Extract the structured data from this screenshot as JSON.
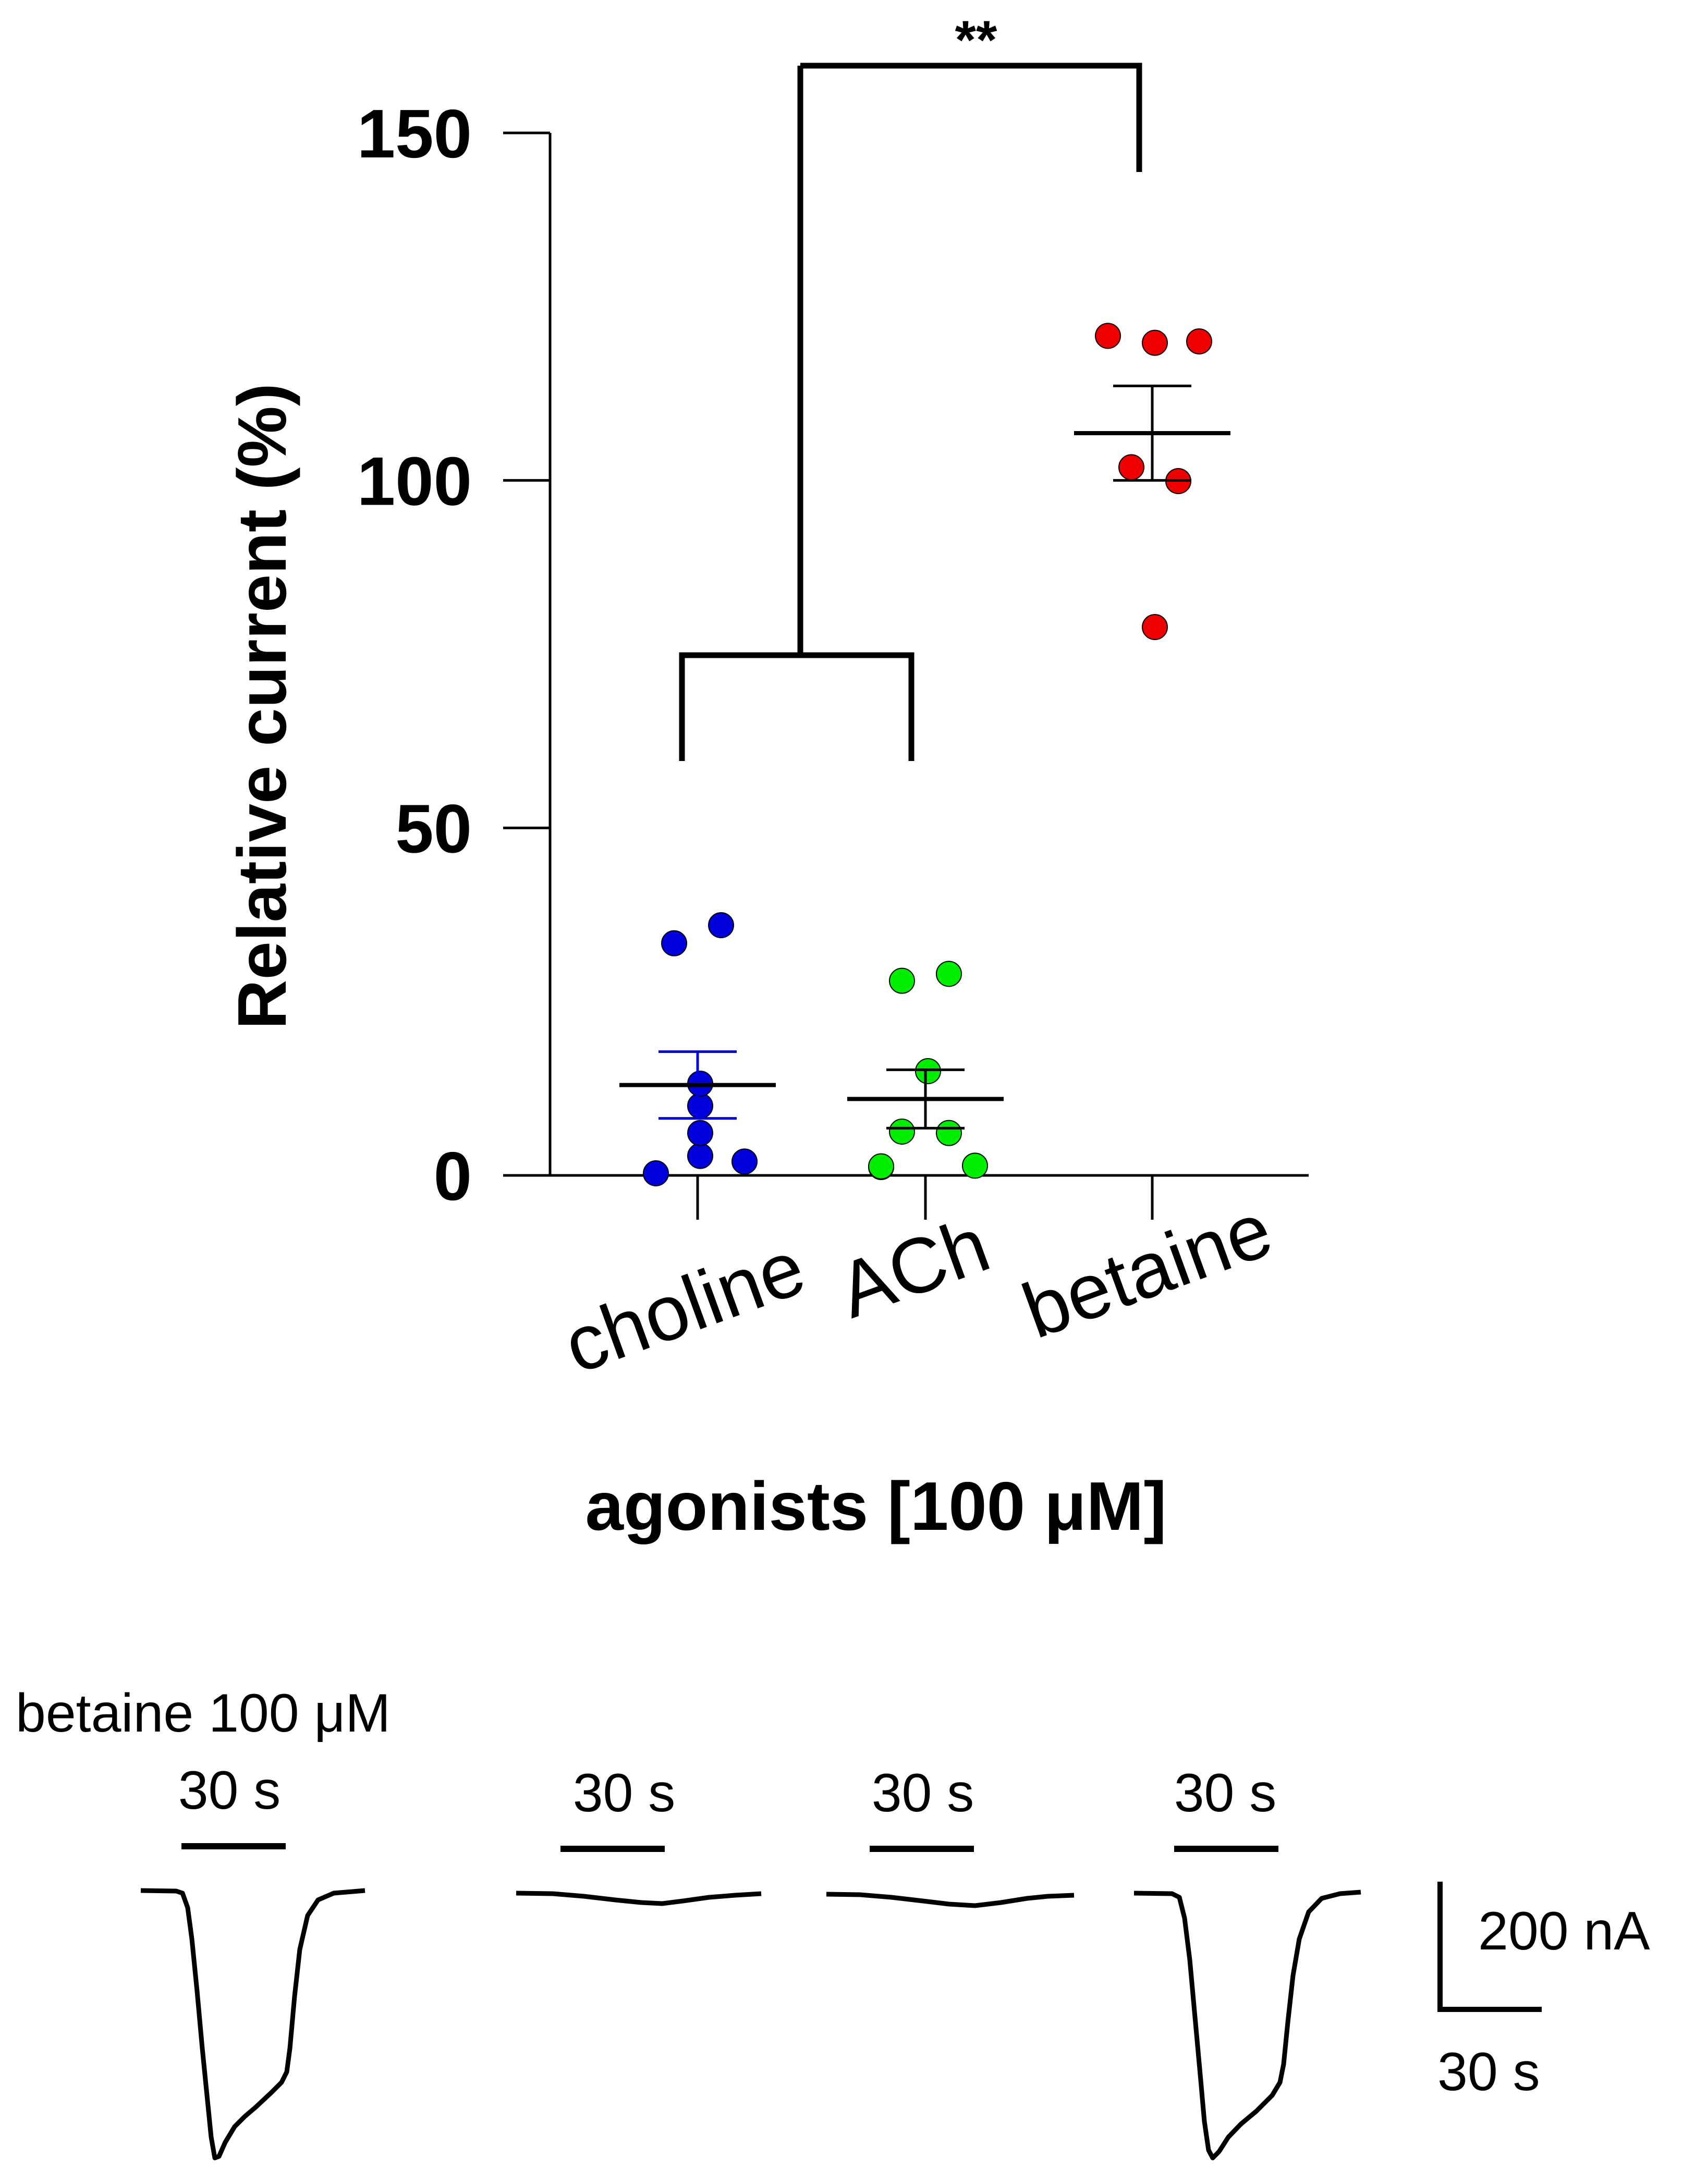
{
  "chart_data": {
    "type": "scatter",
    "ylabel": "Relative current (%)",
    "xlabel": "agonists [100 μM]",
    "ylim": [
      0,
      150
    ],
    "yticks": [
      0,
      50,
      100,
      150
    ],
    "yticklabels": [
      "0",
      "50",
      "100",
      "150"
    ],
    "categories": [
      "choline",
      "ACh",
      "betaine"
    ],
    "series": [
      {
        "name": "choline",
        "color": "#0000dd",
        "mean": 13.0,
        "sem": 4.8,
        "points": [
          0.3,
          33.4,
          36.0,
          2.0,
          2.8,
          6.1,
          10.0,
          13.2
        ]
      },
      {
        "name": "ACh",
        "color": "#00ee00",
        "mean": 11.0,
        "sem": 4.2,
        "points": [
          1.2,
          28.0,
          29.0,
          1.4,
          1.3,
          6.1,
          6.3,
          15.0
        ]
      },
      {
        "name": "betaine",
        "color": "#ee0000",
        "mean": 106.8,
        "sem": 6.8,
        "points": [
          120.8,
          119.8,
          120.0,
          101.9,
          99.9,
          78.9
        ]
      }
    ],
    "significance": {
      "label": "**",
      "groups": [
        [
          "choline",
          "ACh"
        ],
        [
          "betaine"
        ]
      ]
    }
  },
  "traces": {
    "title": "betaine 100 μM",
    "bar_label": "30 s",
    "scale_y_label": "200 nA",
    "scale_x_label": "30 s"
  }
}
